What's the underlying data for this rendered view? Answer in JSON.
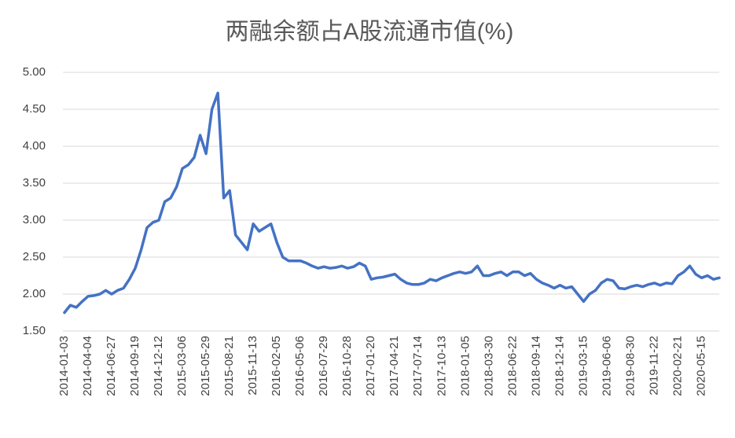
{
  "chart_data": {
    "type": "line",
    "title": "两融余额占A股流通市值(%)",
    "categories": [
      "2014-01-03",
      null,
      null,
      null,
      "2014-04-04",
      null,
      null,
      null,
      "2014-06-27",
      null,
      null,
      null,
      "2014-09-19",
      null,
      null,
      null,
      "2014-12-12",
      null,
      null,
      null,
      "2015-03-06",
      null,
      null,
      null,
      "2015-05-29",
      null,
      null,
      null,
      "2015-08-21",
      null,
      null,
      null,
      "2015-11-13",
      null,
      null,
      null,
      "2016-02-05",
      null,
      null,
      null,
      "2016-05-06",
      null,
      null,
      null,
      "2016-07-29",
      null,
      null,
      null,
      "2016-10-28",
      null,
      null,
      null,
      "2017-01-20",
      null,
      null,
      null,
      "2017-04-21",
      null,
      null,
      null,
      "2017-07-14",
      null,
      null,
      null,
      "2017-10-13",
      null,
      null,
      null,
      "2018-01-05",
      null,
      null,
      null,
      "2018-03-30",
      null,
      null,
      null,
      "2018-06-22",
      null,
      null,
      null,
      "2018-09-14",
      null,
      null,
      null,
      "2018-12-14",
      null,
      null,
      null,
      "2019-03-15",
      null,
      null,
      null,
      "2019-06-06",
      null,
      null,
      null,
      "2019-08-30",
      null,
      null,
      null,
      "2019-11-22",
      null,
      null,
      null,
      "2020-02-21",
      null,
      null,
      null,
      "2020-05-15",
      null,
      null,
      null
    ],
    "values": [
      1.75,
      1.85,
      1.82,
      1.9,
      1.97,
      1.98,
      2.0,
      2.05,
      2.0,
      2.05,
      2.08,
      2.2,
      2.35,
      2.6,
      2.9,
      2.97,
      3.0,
      3.25,
      3.3,
      3.45,
      3.7,
      3.75,
      3.85,
      4.15,
      3.9,
      4.5,
      4.72,
      3.3,
      3.4,
      2.8,
      2.7,
      2.6,
      2.95,
      2.85,
      2.9,
      2.95,
      2.7,
      2.5,
      2.45,
      2.45,
      2.45,
      2.42,
      2.38,
      2.35,
      2.37,
      2.35,
      2.36,
      2.38,
      2.35,
      2.37,
      2.42,
      2.38,
      2.2,
      2.22,
      2.23,
      2.25,
      2.27,
      2.2,
      2.15,
      2.13,
      2.13,
      2.15,
      2.2,
      2.18,
      2.22,
      2.25,
      2.28,
      2.3,
      2.28,
      2.3,
      2.38,
      2.25,
      2.25,
      2.28,
      2.3,
      2.25,
      2.3,
      2.3,
      2.25,
      2.28,
      2.2,
      2.15,
      2.12,
      2.08,
      2.12,
      2.08,
      2.1,
      2.0,
      1.9,
      2.0,
      2.05,
      2.15,
      2.2,
      2.18,
      2.08,
      2.07,
      2.1,
      2.12,
      2.1,
      2.13,
      2.15,
      2.12,
      2.15,
      2.14,
      2.25,
      2.3,
      2.38,
      2.27,
      2.22,
      2.25,
      2.2,
      2.22
    ],
    "color": "#4472c4",
    "ylim": [
      1.5,
      5
    ],
    "yticks": [
      {
        "value": 1.5,
        "label": "1.50"
      },
      {
        "value": 2,
        "label": "2.00"
      },
      {
        "value": 2.5,
        "label": "2.50"
      },
      {
        "value": 3,
        "label": "3.00"
      },
      {
        "value": 3.5,
        "label": "3.50"
      },
      {
        "value": 4,
        "label": "4.00"
      },
      {
        "value": 4.5,
        "label": "4.50"
      },
      {
        "value": 5,
        "label": "5.00"
      }
    ],
    "grid": true
  }
}
